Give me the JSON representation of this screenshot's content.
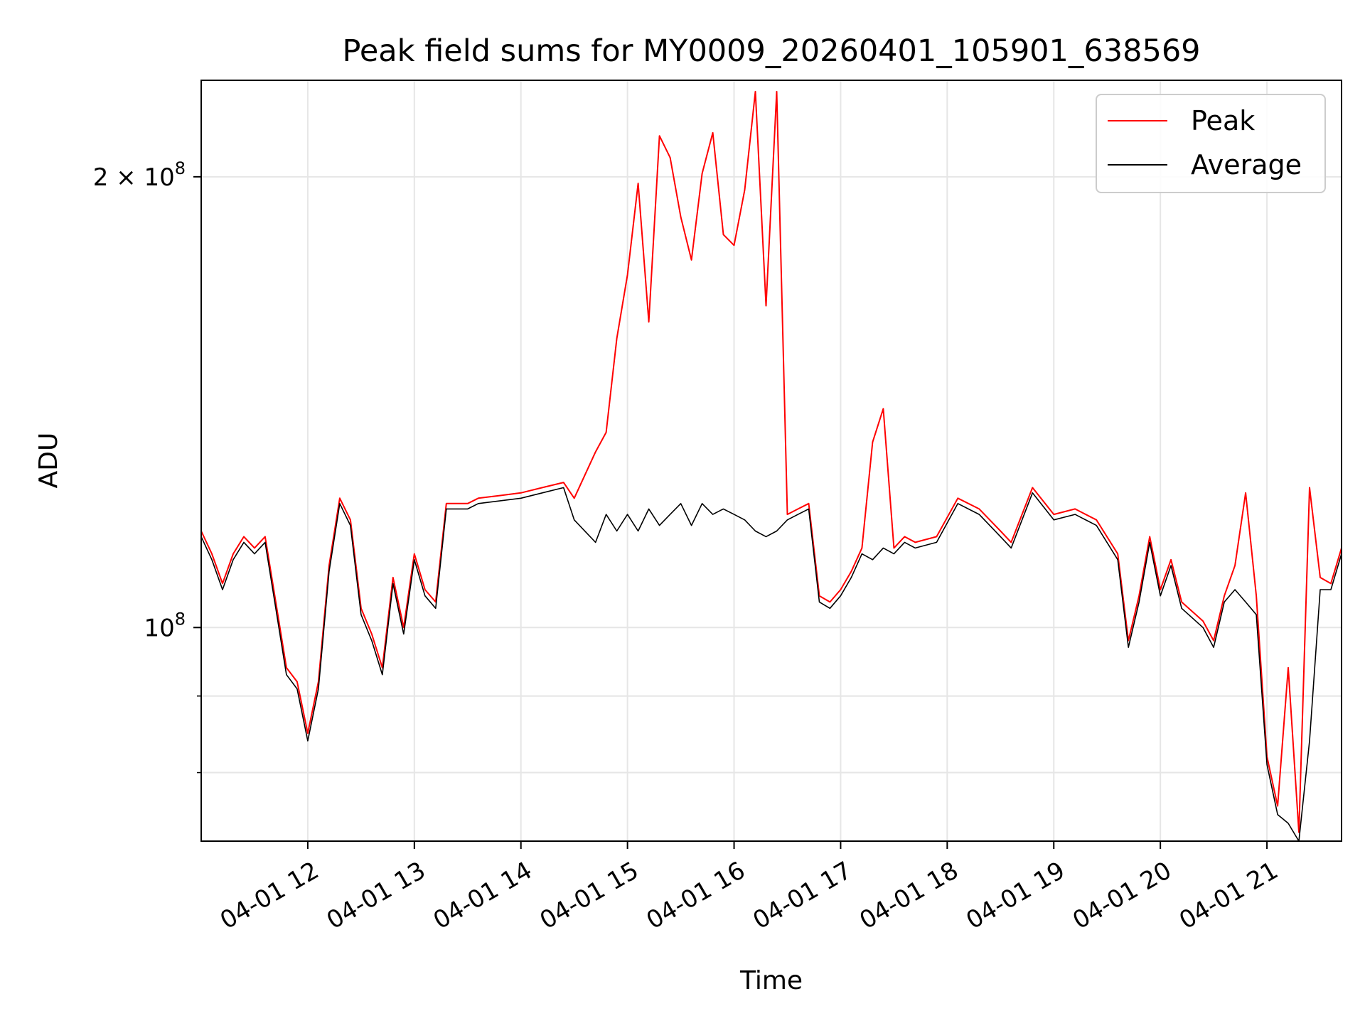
{
  "chart_data": {
    "type": "line",
    "title": "Peak field sums for MY0009_20260401_105901_638569",
    "xlabel": "Time",
    "ylabel": "ADU",
    "y_scale": "log",
    "ylim": [
      72000000,
      232000000
    ],
    "xlim": [
      "2026-04-01 11:00",
      "2026-04-01 21:42"
    ],
    "grid": true,
    "legend_position": "top-right",
    "x_ticks": [
      {
        "value": "2026-04-01 12:00",
        "label": "04-01 12"
      },
      {
        "value": "2026-04-01 13:00",
        "label": "04-01 13"
      },
      {
        "value": "2026-04-01 14:00",
        "label": "04-01 14"
      },
      {
        "value": "2026-04-01 15:00",
        "label": "04-01 15"
      },
      {
        "value": "2026-04-01 16:00",
        "label": "04-01 16"
      },
      {
        "value": "2026-04-01 17:00",
        "label": "04-01 17"
      },
      {
        "value": "2026-04-01 18:00",
        "label": "04-01 18"
      },
      {
        "value": "2026-04-01 19:00",
        "label": "04-01 19"
      },
      {
        "value": "2026-04-01 20:00",
        "label": "04-01 20"
      },
      {
        "value": "2026-04-01 21:00",
        "label": "04-01 21"
      }
    ],
    "y_ticks": [
      {
        "value": 100000000,
        "base": "10",
        "exp": "8",
        "mult": ""
      },
      {
        "value": 200000000,
        "base": "10",
        "exp": "8",
        "mult": "2 × "
      }
    ],
    "y_minor_ticks": [
      80000000,
      90000000
    ],
    "series": [
      {
        "name": "Peak",
        "color": "#ff0000",
        "points": [
          [
            "2026-04-01 11:00",
            116000000
          ],
          [
            "2026-04-01 11:06",
            112000000
          ],
          [
            "2026-04-01 11:12",
            107000000
          ],
          [
            "2026-04-01 11:18",
            112000000
          ],
          [
            "2026-04-01 11:24",
            115000000
          ],
          [
            "2026-04-01 11:30",
            113000000
          ],
          [
            "2026-04-01 11:36",
            115000000
          ],
          [
            "2026-04-01 11:42",
            104000000
          ],
          [
            "2026-04-01 11:48",
            94000000
          ],
          [
            "2026-04-01 11:54",
            92000000
          ],
          [
            "2026-04-01 12:00",
            85000000
          ],
          [
            "2026-04-01 12:06",
            92000000
          ],
          [
            "2026-04-01 12:12",
            110000000
          ],
          [
            "2026-04-01 12:18",
            122000000
          ],
          [
            "2026-04-01 12:24",
            118000000
          ],
          [
            "2026-04-01 12:30",
            103000000
          ],
          [
            "2026-04-01 12:36",
            99000000
          ],
          [
            "2026-04-01 12:42",
            94000000
          ],
          [
            "2026-04-01 12:48",
            108000000
          ],
          [
            "2026-04-01 12:54",
            100000000
          ],
          [
            "2026-04-01 13:00",
            112000000
          ],
          [
            "2026-04-01 13:06",
            106000000
          ],
          [
            "2026-04-01 13:12",
            104000000
          ],
          [
            "2026-04-01 13:18",
            121000000
          ],
          [
            "2026-04-01 13:30",
            121000000
          ],
          [
            "2026-04-01 13:36",
            122000000
          ],
          [
            "2026-04-01 13:48",
            122500000
          ],
          [
            "2026-04-01 14:00",
            123000000
          ],
          [
            "2026-04-01 14:12",
            124000000
          ],
          [
            "2026-04-01 14:24",
            125000000
          ],
          [
            "2026-04-01 14:30",
            122000000
          ],
          [
            "2026-04-01 14:42",
            131000000
          ],
          [
            "2026-04-01 14:48",
            135000000
          ],
          [
            "2026-04-01 14:54",
            156000000
          ],
          [
            "2026-04-01 15:00",
            172000000
          ],
          [
            "2026-04-01 15:06",
            198000000
          ],
          [
            "2026-04-01 15:12",
            160000000
          ],
          [
            "2026-04-01 15:18",
            213000000
          ],
          [
            "2026-04-01 15:24",
            206000000
          ],
          [
            "2026-04-01 15:30",
            188000000
          ],
          [
            "2026-04-01 15:36",
            176000000
          ],
          [
            "2026-04-01 15:42",
            201000000
          ],
          [
            "2026-04-01 15:48",
            214000000
          ],
          [
            "2026-04-01 15:54",
            183000000
          ],
          [
            "2026-04-01 16:00",
            180000000
          ],
          [
            "2026-04-01 16:06",
            196000000
          ],
          [
            "2026-04-01 16:12",
            228000000
          ],
          [
            "2026-04-01 16:18",
            164000000
          ],
          [
            "2026-04-01 16:24",
            228000000
          ],
          [
            "2026-04-01 16:30",
            119000000
          ],
          [
            "2026-04-01 16:36",
            120000000
          ],
          [
            "2026-04-01 16:42",
            121000000
          ],
          [
            "2026-04-01 16:48",
            105000000
          ],
          [
            "2026-04-01 16:54",
            104000000
          ],
          [
            "2026-04-01 17:00",
            106000000
          ],
          [
            "2026-04-01 17:06",
            109000000
          ],
          [
            "2026-04-01 17:12",
            113000000
          ],
          [
            "2026-04-01 17:18",
            133000000
          ],
          [
            "2026-04-01 17:24",
            140000000
          ],
          [
            "2026-04-01 17:30",
            113000000
          ],
          [
            "2026-04-01 17:36",
            115000000
          ],
          [
            "2026-04-01 17:42",
            114000000
          ],
          [
            "2026-04-01 17:54",
            115000000
          ],
          [
            "2026-04-01 18:06",
            122000000
          ],
          [
            "2026-04-01 18:18",
            120000000
          ],
          [
            "2026-04-01 18:30",
            116000000
          ],
          [
            "2026-04-01 18:36",
            114000000
          ],
          [
            "2026-04-01 18:48",
            124000000
          ],
          [
            "2026-04-01 19:00",
            119000000
          ],
          [
            "2026-04-01 19:12",
            120000000
          ],
          [
            "2026-04-01 19:24",
            118000000
          ],
          [
            "2026-04-01 19:36",
            112000000
          ],
          [
            "2026-04-01 19:42",
            98000000
          ],
          [
            "2026-04-01 19:48",
            105000000
          ],
          [
            "2026-04-01 19:54",
            115000000
          ],
          [
            "2026-04-01 20:00",
            106000000
          ],
          [
            "2026-04-01 20:06",
            111000000
          ],
          [
            "2026-04-01 20:12",
            104000000
          ],
          [
            "2026-04-01 20:24",
            101000000
          ],
          [
            "2026-04-01 20:30",
            98000000
          ],
          [
            "2026-04-01 20:36",
            105000000
          ],
          [
            "2026-04-01 20:42",
            110000000
          ],
          [
            "2026-04-01 20:48",
            123000000
          ],
          [
            "2026-04-01 20:54",
            105000000
          ],
          [
            "2026-04-01 21:00",
            82000000
          ],
          [
            "2026-04-01 21:06",
            76000000
          ],
          [
            "2026-04-01 21:12",
            94000000
          ],
          [
            "2026-04-01 21:18",
            73000000
          ],
          [
            "2026-04-01 21:24",
            124000000
          ],
          [
            "2026-04-01 21:30",
            108000000
          ],
          [
            "2026-04-01 21:36",
            107000000
          ],
          [
            "2026-04-01 21:42",
            113000000
          ]
        ]
      },
      {
        "name": "Average",
        "color": "#000000",
        "points": [
          [
            "2026-04-01 11:00",
            115000000
          ],
          [
            "2026-04-01 11:06",
            111000000
          ],
          [
            "2026-04-01 11:12",
            106000000
          ],
          [
            "2026-04-01 11:18",
            111000000
          ],
          [
            "2026-04-01 11:24",
            114000000
          ],
          [
            "2026-04-01 11:30",
            112000000
          ],
          [
            "2026-04-01 11:36",
            114000000
          ],
          [
            "2026-04-01 11:42",
            103000000
          ],
          [
            "2026-04-01 11:48",
            93000000
          ],
          [
            "2026-04-01 11:54",
            91000000
          ],
          [
            "2026-04-01 12:00",
            84000000
          ],
          [
            "2026-04-01 12:06",
            91000000
          ],
          [
            "2026-04-01 12:12",
            109000000
          ],
          [
            "2026-04-01 12:18",
            121000000
          ],
          [
            "2026-04-01 12:24",
            117000000
          ],
          [
            "2026-04-01 12:30",
            102000000
          ],
          [
            "2026-04-01 12:36",
            98000000
          ],
          [
            "2026-04-01 12:42",
            93000000
          ],
          [
            "2026-04-01 12:48",
            107000000
          ],
          [
            "2026-04-01 12:54",
            99000000
          ],
          [
            "2026-04-01 13:00",
            111000000
          ],
          [
            "2026-04-01 13:06",
            105000000
          ],
          [
            "2026-04-01 13:12",
            103000000
          ],
          [
            "2026-04-01 13:18",
            120000000
          ],
          [
            "2026-04-01 13:30",
            120000000
          ],
          [
            "2026-04-01 13:36",
            121000000
          ],
          [
            "2026-04-01 13:48",
            121500000
          ],
          [
            "2026-04-01 14:00",
            122000000
          ],
          [
            "2026-04-01 14:12",
            123000000
          ],
          [
            "2026-04-01 14:24",
            124000000
          ],
          [
            "2026-04-01 14:30",
            118000000
          ],
          [
            "2026-04-01 14:42",
            114000000
          ],
          [
            "2026-04-01 14:48",
            119000000
          ],
          [
            "2026-04-01 14:54",
            116000000
          ],
          [
            "2026-04-01 15:00",
            119000000
          ],
          [
            "2026-04-01 15:06",
            116000000
          ],
          [
            "2026-04-01 15:12",
            120000000
          ],
          [
            "2026-04-01 15:18",
            117000000
          ],
          [
            "2026-04-01 15:24",
            119000000
          ],
          [
            "2026-04-01 15:30",
            121000000
          ],
          [
            "2026-04-01 15:36",
            117000000
          ],
          [
            "2026-04-01 15:42",
            121000000
          ],
          [
            "2026-04-01 15:48",
            119000000
          ],
          [
            "2026-04-01 15:54",
            120000000
          ],
          [
            "2026-04-01 16:00",
            119000000
          ],
          [
            "2026-04-01 16:06",
            118000000
          ],
          [
            "2026-04-01 16:12",
            116000000
          ],
          [
            "2026-04-01 16:18",
            115000000
          ],
          [
            "2026-04-01 16:24",
            116000000
          ],
          [
            "2026-04-01 16:30",
            118000000
          ],
          [
            "2026-04-01 16:36",
            119000000
          ],
          [
            "2026-04-01 16:42",
            120000000
          ],
          [
            "2026-04-01 16:48",
            104000000
          ],
          [
            "2026-04-01 16:54",
            103000000
          ],
          [
            "2026-04-01 17:00",
            105000000
          ],
          [
            "2026-04-01 17:06",
            108000000
          ],
          [
            "2026-04-01 17:12",
            112000000
          ],
          [
            "2026-04-01 17:18",
            111000000
          ],
          [
            "2026-04-01 17:24",
            113000000
          ],
          [
            "2026-04-01 17:30",
            112000000
          ],
          [
            "2026-04-01 17:36",
            114000000
          ],
          [
            "2026-04-01 17:42",
            113000000
          ],
          [
            "2026-04-01 17:54",
            114000000
          ],
          [
            "2026-04-01 18:06",
            121000000
          ],
          [
            "2026-04-01 18:18",
            119000000
          ],
          [
            "2026-04-01 18:30",
            115000000
          ],
          [
            "2026-04-01 18:36",
            113000000
          ],
          [
            "2026-04-01 18:48",
            123000000
          ],
          [
            "2026-04-01 19:00",
            118000000
          ],
          [
            "2026-04-01 19:12",
            119000000
          ],
          [
            "2026-04-01 19:24",
            117000000
          ],
          [
            "2026-04-01 19:36",
            111000000
          ],
          [
            "2026-04-01 19:42",
            97000000
          ],
          [
            "2026-04-01 19:48",
            104000000
          ],
          [
            "2026-04-01 19:54",
            114000000
          ],
          [
            "2026-04-01 20:00",
            105000000
          ],
          [
            "2026-04-01 20:06",
            110000000
          ],
          [
            "2026-04-01 20:12",
            103000000
          ],
          [
            "2026-04-01 20:24",
            100000000
          ],
          [
            "2026-04-01 20:30",
            97000000
          ],
          [
            "2026-04-01 20:36",
            104000000
          ],
          [
            "2026-04-01 20:42",
            106000000
          ],
          [
            "2026-04-01 20:48",
            104000000
          ],
          [
            "2026-04-01 20:54",
            102000000
          ],
          [
            "2026-04-01 21:00",
            81000000
          ],
          [
            "2026-04-01 21:06",
            75000000
          ],
          [
            "2026-04-01 21:12",
            74000000
          ],
          [
            "2026-04-01 21:18",
            72000000
          ],
          [
            "2026-04-01 21:24",
            84000000
          ],
          [
            "2026-04-01 21:30",
            106000000
          ],
          [
            "2026-04-01 21:36",
            106000000
          ],
          [
            "2026-04-01 21:42",
            112000000
          ]
        ]
      }
    ]
  }
}
